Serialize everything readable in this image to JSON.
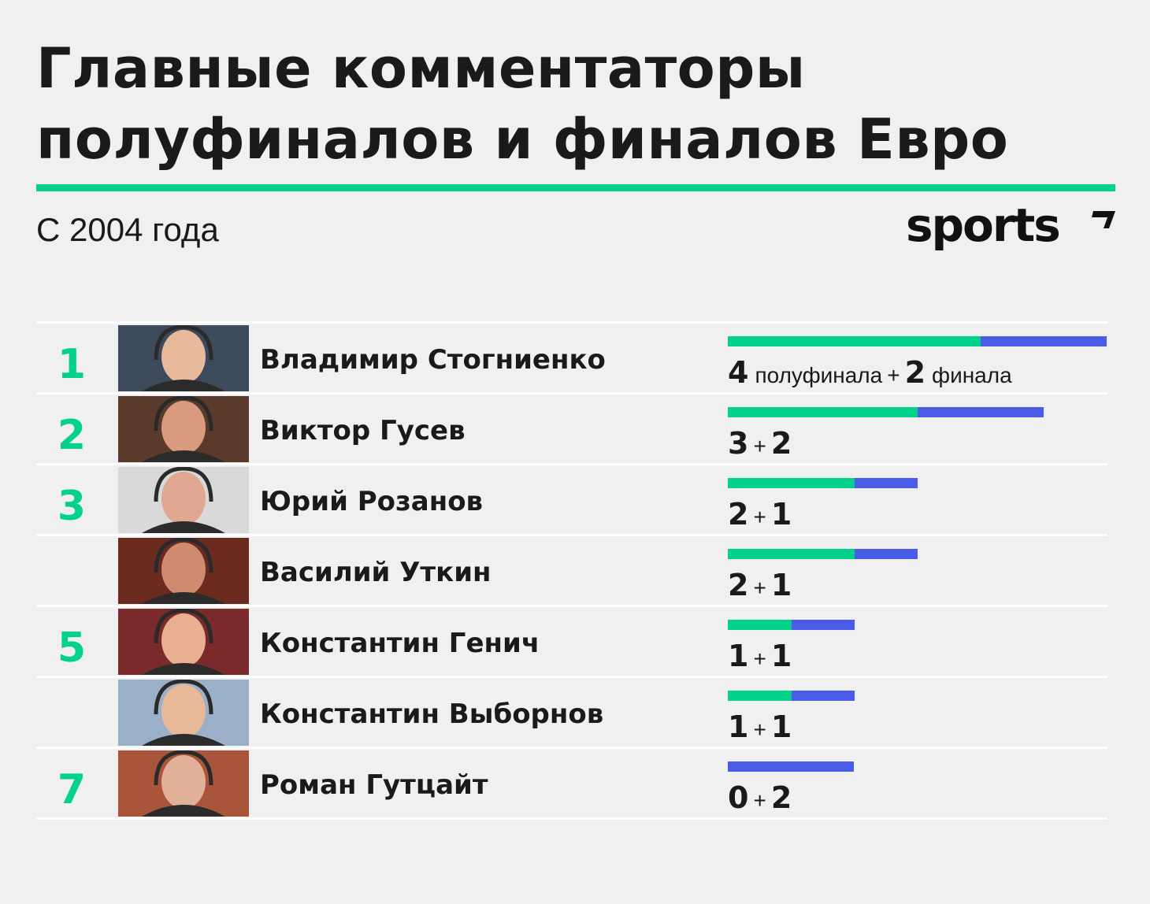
{
  "title_line1": "Главные комментаторы",
  "title_line2": "полуфиналов и финалов Евро",
  "subtitle": "С 2004 года",
  "logo": "sports",
  "colors": {
    "accent": "#00d18b",
    "semifinal": "#00d18b",
    "final": "#4a5be8",
    "background": "#f0f0f0"
  },
  "legend": {
    "semi_word": "полуфинала",
    "plus": "+",
    "final_word": "финала"
  },
  "rows": [
    {
      "rank": "1",
      "name": "Владимир Стогниенко",
      "semi": "4",
      "final": "2",
      "plus": "+"
    },
    {
      "rank": "2",
      "name": "Виктор Гусев",
      "semi": "3",
      "final": "2",
      "plus": "+"
    },
    {
      "rank": "3",
      "name": "Юрий Розанов",
      "semi": "2",
      "final": "1",
      "plus": "+"
    },
    {
      "rank": "",
      "name": "Василий Уткин",
      "semi": "2",
      "final": "1",
      "plus": "+"
    },
    {
      "rank": "5",
      "name": "Константин Генич",
      "semi": "1",
      "final": "1",
      "plus": "+"
    },
    {
      "rank": "",
      "name": "Константин Выборнов",
      "semi": "1",
      "final": "1",
      "plus": "+"
    },
    {
      "rank": "7",
      "name": "Роман Гутцайт",
      "semi": "0",
      "final": "2",
      "plus": "+"
    }
  ],
  "chart_data": {
    "type": "bar",
    "orientation": "horizontal",
    "stacked": true,
    "categories": [
      "Владимир Стогниенко",
      "Виктор Гусев",
      "Юрий Розанов",
      "Василий Уткин",
      "Константин Генич",
      "Константин Выборнов",
      "Роман Гутцайт"
    ],
    "series": [
      {
        "name": "полуфинала",
        "values": [
          4,
          3,
          2,
          2,
          1,
          1,
          0
        ]
      },
      {
        "name": "финала",
        "values": [
          2,
          2,
          1,
          1,
          1,
          1,
          2
        ]
      }
    ],
    "title": "Главные комментаторы полуфиналов и финалов Евро",
    "subtitle": "С 2004 года",
    "xlim": [
      0,
      6
    ]
  }
}
